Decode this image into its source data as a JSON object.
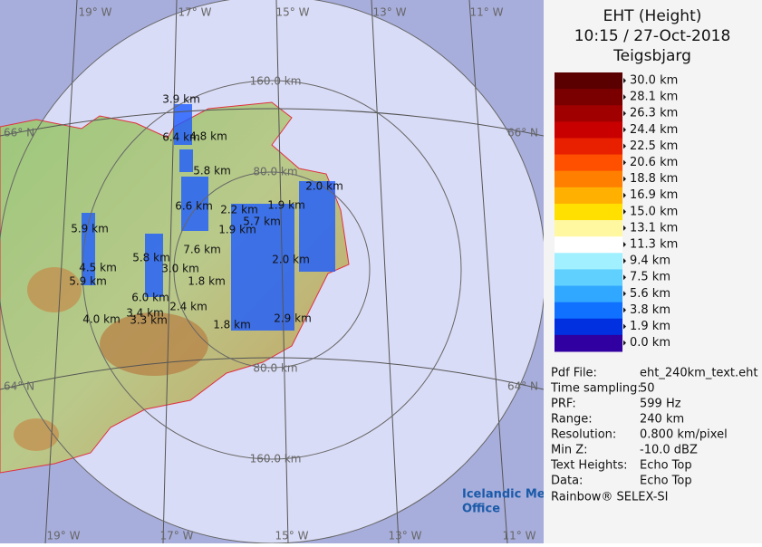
{
  "map": {
    "lon_top": [
      "19° W",
      "17° W",
      "15° W",
      "13° W",
      "11° W"
    ],
    "lon_bottom": [
      "19° W",
      "17° W",
      "15° W",
      "13° W",
      "11° W"
    ],
    "lat_left": [
      "66° N",
      "64° N"
    ],
    "lat_right": [
      "66° N",
      "64° N"
    ],
    "ring_labels": [
      "160.0 km",
      "80.0 km",
      "80.0 km",
      "160.0 km"
    ],
    "echo_labels": [
      "3.9 km",
      "6.4 km",
      "4.8 km",
      "5.8 km",
      "2.0 km",
      "6.6 km",
      "2.2 km",
      "1.9 km",
      "5.7 km",
      "5.9 km",
      "1.9 km",
      "7.6 km",
      "5.8 km",
      "4.5 km",
      "3.0 km",
      "5.9 km",
      "1.8 km",
      "2.0 km",
      "6.0 km",
      "3.4 km",
      "3.3 km",
      "4.0 km",
      "2.4 km",
      "1.8 km",
      "2.9 km"
    ],
    "logo": [
      "Icelandic Met",
      "Office"
    ]
  },
  "panel": {
    "title": [
      "EHT (Height)",
      "10:15 / 27-Oct-2018",
      "Teigsbjarg"
    ],
    "legend": {
      "labels": [
        "30.0 km",
        "28.1 km",
        "26.3 km",
        "24.4 km",
        "22.5 km",
        "20.6 km",
        "18.8 km",
        "16.9 km",
        "15.0 km",
        "13.1 km",
        "11.3 km",
        "9.4 km",
        "7.5 km",
        "5.6 km",
        "3.8 km",
        "1.9 km",
        "0.0 km"
      ],
      "colors": [
        "#5a0000",
        "#7a0000",
        "#a00000",
        "#c80000",
        "#e82000",
        "#ff5000",
        "#ff8000",
        "#ffb000",
        "#ffe000",
        "#fff8a0",
        "#ffffff",
        "#a0f0ff",
        "#60d0ff",
        "#30a8ff",
        "#1070ff",
        "#0030e0",
        "#3000a0"
      ]
    },
    "info": [
      [
        "Pdf File:",
        "eht_240km_text.eht"
      ],
      [
        "Time sampling:",
        "50"
      ],
      [
        "PRF:",
        "599 Hz"
      ],
      [
        "Range:",
        "240 km"
      ],
      [
        "Resolution:",
        "0.800 km/pixel"
      ],
      [
        "Min Z:",
        "-10.0 dBZ"
      ],
      [
        "Text Heights:",
        "Echo Top"
      ],
      [
        "Data:",
        "Echo Top"
      ]
    ],
    "credit": "Rainbow® SELEX-SI"
  }
}
